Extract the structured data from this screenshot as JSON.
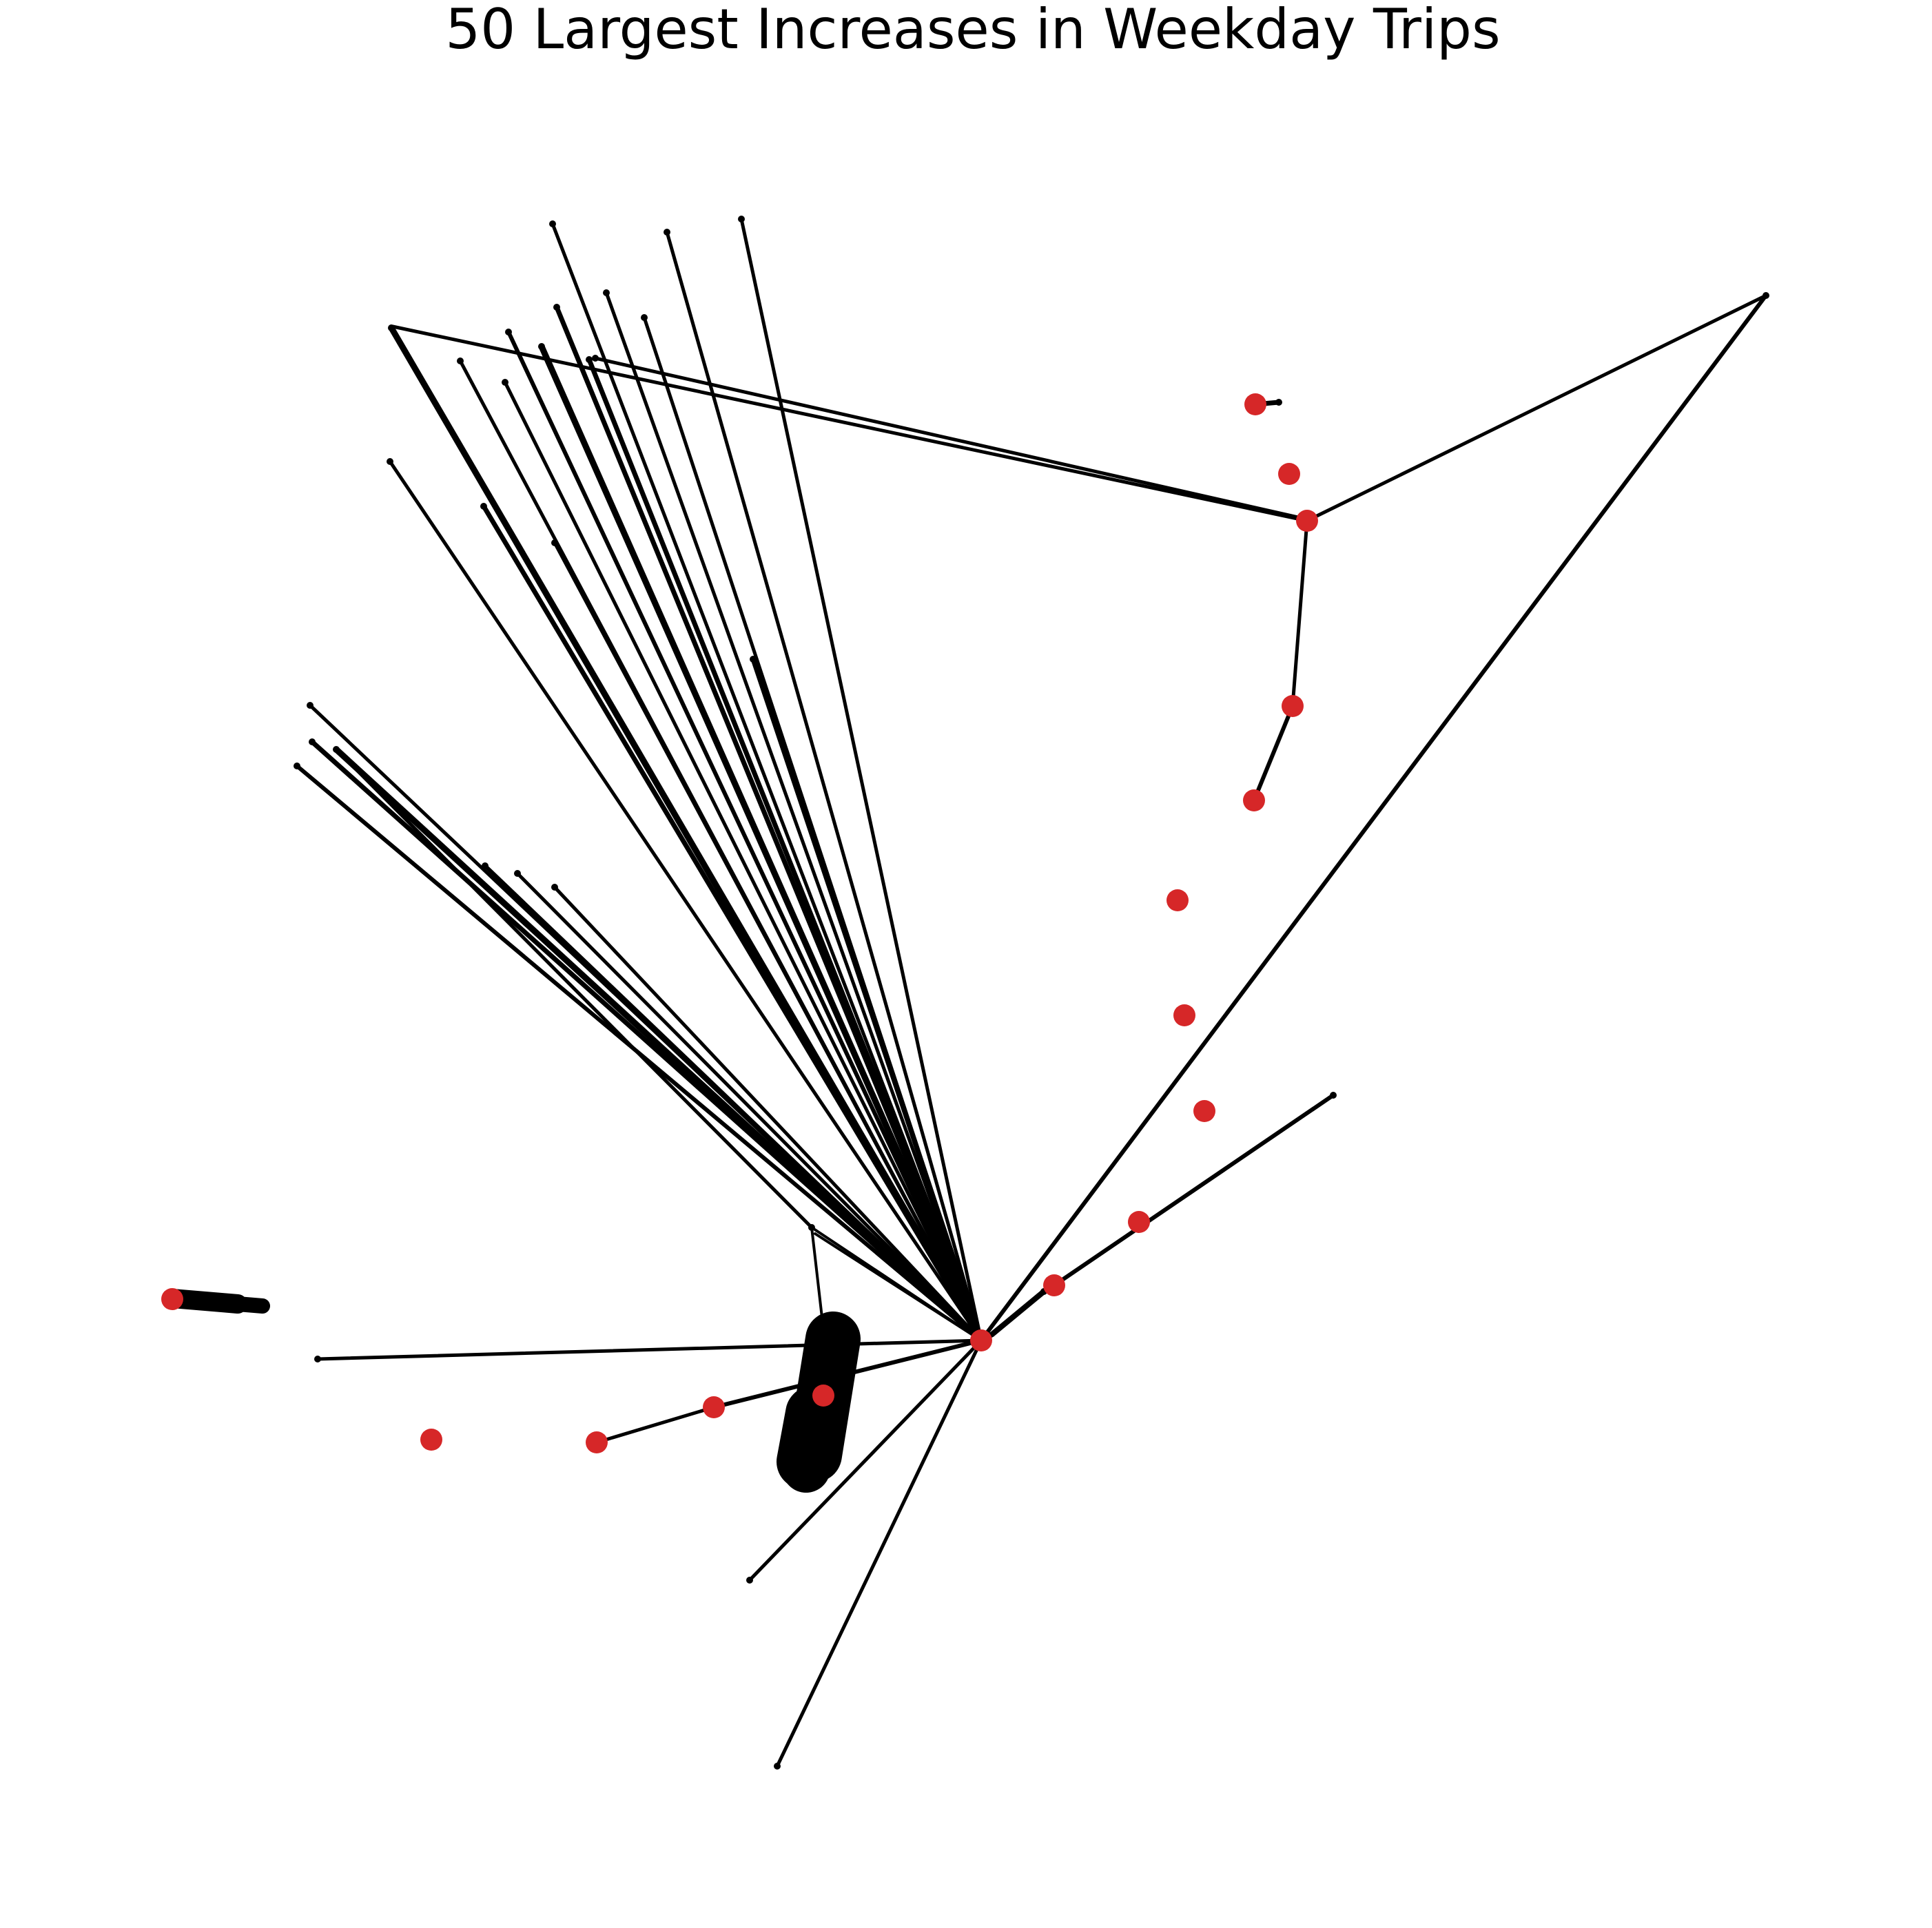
{
  "chart_data": {
    "type": "network",
    "title": "50 Largest Increases in Weekday Trips",
    "axes_visible": false,
    "colors": {
      "station": "#d62728",
      "edge": "#000000",
      "background": "#ffffff"
    }
  }
}
